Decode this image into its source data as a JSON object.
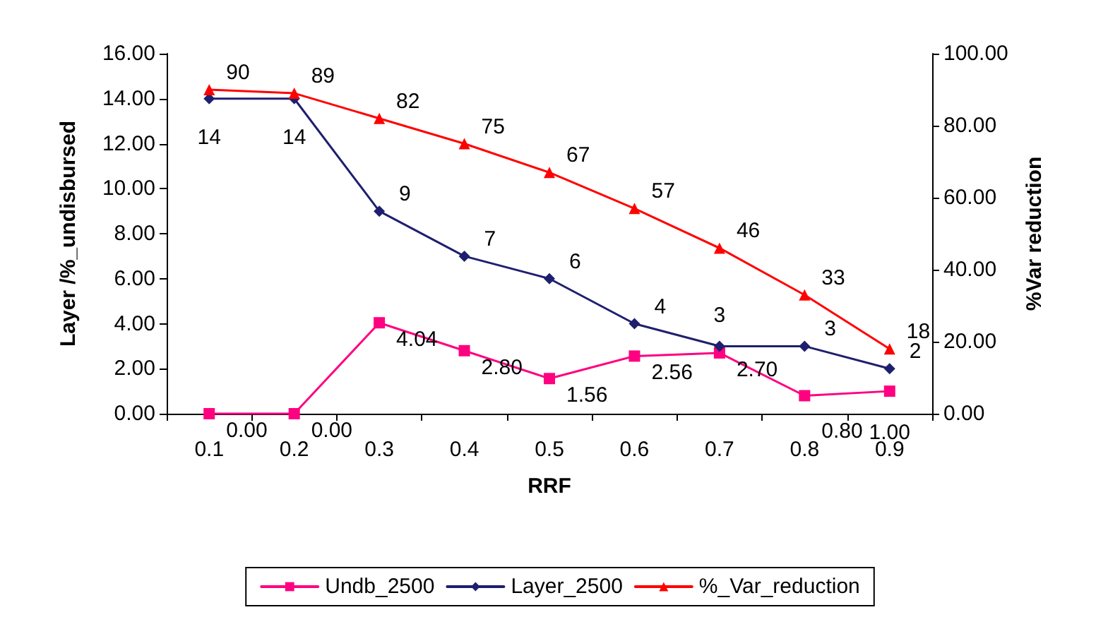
{
  "chart_data": {
    "type": "line",
    "xlabel": "RRF",
    "ylabel": "Layer /%_undisbursed",
    "y2label": "%Var reduction",
    "categories": [
      "0.1",
      "0.2",
      "0.3",
      "0.4",
      "0.5",
      "0.6",
      "0.7",
      "0.8",
      "0.9"
    ],
    "series": [
      {
        "name": "Undb_2500",
        "color": "#ff0080",
        "marker": "square",
        "values": [
          0.0,
          0.0,
          4.04,
          2.8,
          1.56,
          2.56,
          2.7,
          0.8,
          1.0
        ],
        "value_labels": [
          "0.00",
          "0.00",
          "4.04",
          "2.80",
          "1.56",
          "2.56",
          "2.70",
          "0.80",
          "1.00"
        ]
      },
      {
        "name": "Layer_2500",
        "color": "#1f1f6f",
        "marker": "diamond",
        "values": [
          14,
          14,
          9,
          7,
          6,
          4,
          3,
          3,
          2
        ],
        "value_labels": [
          "14",
          "14",
          "9",
          "7",
          "6",
          "4",
          "3",
          "3",
          "2"
        ]
      },
      {
        "name": "%_Var_reduction",
        "color": "#ff0000",
        "marker": "triangle",
        "axis": "y2",
        "values": [
          90,
          89,
          82,
          75,
          67,
          57,
          46,
          33,
          18
        ],
        "value_labels": [
          "90",
          "89",
          "82",
          "75",
          "67",
          "57",
          "46",
          "33",
          "18"
        ]
      }
    ],
    "ylim": [
      0,
      16
    ],
    "yticks": [
      {
        "value": 0,
        "label": "0.00"
      },
      {
        "value": 2,
        "label": "2.00"
      },
      {
        "value": 4,
        "label": "4.00"
      },
      {
        "value": 6,
        "label": "6.00"
      },
      {
        "value": 8,
        "label": "8.00"
      },
      {
        "value": 10,
        "label": "10.00"
      },
      {
        "value": 12,
        "label": "12.00"
      },
      {
        "value": 14,
        "label": "14.00"
      },
      {
        "value": 16,
        "label": "16.00"
      }
    ],
    "y2lim": [
      0,
      100
    ],
    "y2ticks": [
      {
        "value": 0,
        "label": "0.00"
      },
      {
        "value": 20,
        "label": "20.00"
      },
      {
        "value": 40,
        "label": "40.00"
      },
      {
        "value": 60,
        "label": "60.00"
      },
      {
        "value": 80,
        "label": "80.00"
      },
      {
        "value": 100,
        "label": "100.00"
      }
    ],
    "grid": false,
    "legend": "bottom",
    "line_style": "solid"
  }
}
